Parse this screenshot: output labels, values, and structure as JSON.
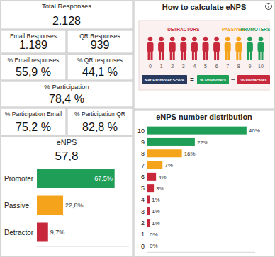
{
  "kpis": [
    [
      {
        "label": "Total Responses",
        "value": "2.128"
      }
    ],
    [
      {
        "label": "Email Responses",
        "value": "1.189"
      },
      {
        "label": "QR Responses",
        "value": "939"
      }
    ],
    [
      {
        "label": "% Email responses",
        "value": "55,9 %"
      },
      {
        "label": "% QR responses",
        "value": "44,1 %"
      }
    ],
    [
      {
        "label": "% Participation",
        "value": "78,4 %"
      }
    ],
    [
      {
        "label": "% Participation Email",
        "value": "75,2 %"
      },
      {
        "label": "% Participation QR",
        "value": "82,8 %"
      }
    ]
  ],
  "explainer": {
    "title": "How to calculate eNPS",
    "groups": [
      {
        "label": "DETRACTORS",
        "color": "#c8283c",
        "scores": [
          0,
          1,
          2,
          3,
          4,
          5,
          6
        ]
      },
      {
        "label": "PASSIVES",
        "color": "#f5a31a",
        "scores": [
          7,
          8
        ]
      },
      {
        "label": "PROMOTERS",
        "color": "#1f9e57",
        "scores": [
          9,
          10
        ]
      }
    ],
    "formula": {
      "result": "Net Promoter Score",
      "equals": "=",
      "minuend": "% Promoters",
      "minus": "−",
      "subtrahend": "% Detractors"
    }
  },
  "chart_data": [
    {
      "type": "bar",
      "title": "eNPS",
      "subtitle": "57,8",
      "orientation": "horizontal",
      "categories": [
        "Promoter",
        "Passive",
        "Detractor"
      ],
      "values": [
        67.5,
        22.8,
        9.7
      ],
      "value_labels": [
        "67,5%",
        "22,8%",
        "9,7%"
      ],
      "colors": [
        "#1f9e57",
        "#f5a31a",
        "#c8283c"
      ],
      "xlim": [
        0,
        80
      ],
      "data_labels": true,
      "tick_labels": "y"
    },
    {
      "type": "bar",
      "title": "eNPS number distribution",
      "orientation": "horizontal",
      "categories": [
        "10",
        "9",
        "8",
        "7",
        "6",
        "5",
        "4",
        "3",
        "2",
        "1",
        "0"
      ],
      "values": [
        46,
        22,
        16,
        7,
        4,
        3,
        1,
        1,
        1,
        0,
        0
      ],
      "value_labels": [
        "46%",
        "22%",
        "16%",
        "7%",
        "4%",
        "3%",
        "1%",
        "1%",
        "1%",
        "0%",
        "0%"
      ],
      "colors": [
        "#1f9e57",
        "#1f9e57",
        "#f5a31a",
        "#f5a31a",
        "#c8283c",
        "#c8283c",
        "#c8283c",
        "#c8283c",
        "#c8283c",
        "#c8283c",
        "#c8283c"
      ],
      "xlim": [
        0,
        50
      ],
      "data_labels": true,
      "tick_labels": "y"
    }
  ]
}
